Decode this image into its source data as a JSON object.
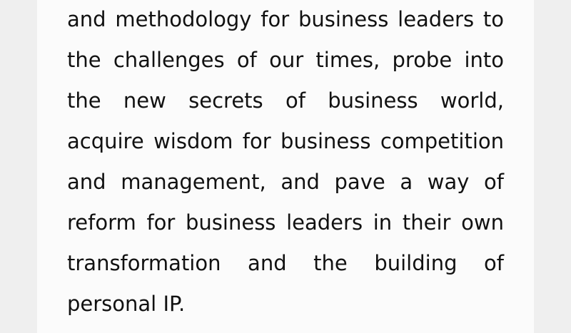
{
  "article": {
    "paragraph_lines": [
      "and methodology for business leaders to",
      "the challenges of our times, probe into",
      "the new secrets of business world,",
      "acquire wisdom for business competition",
      "and management, and pave a way of",
      "reform for business leaders in their own",
      "transformation and the building of",
      "personal IP."
    ]
  }
}
